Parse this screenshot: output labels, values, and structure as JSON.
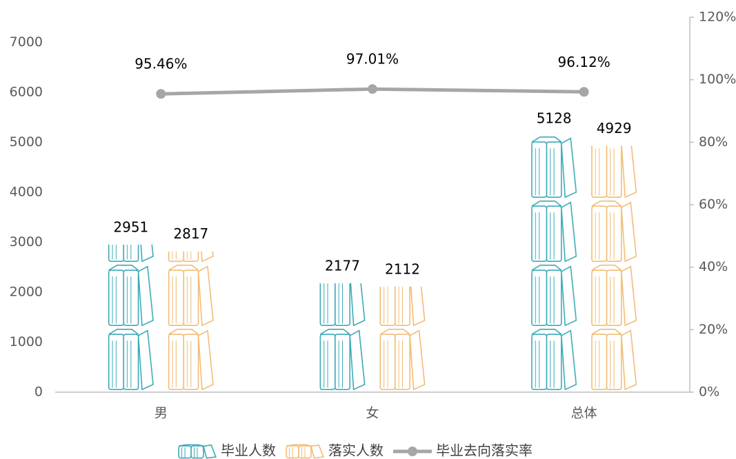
{
  "chart_data": {
    "type": "bar",
    "categories": [
      "男",
      "女",
      "总体"
    ],
    "series": [
      {
        "name": "毕业人数",
        "color": "#3aaab8",
        "values": [
          2951,
          2177,
          5128
        ]
      },
      {
        "name": "落实人数",
        "color": "#f2bc72",
        "values": [
          2817,
          2112,
          4929
        ]
      },
      {
        "name": "毕业去向落实率",
        "type": "line",
        "axis": "y2",
        "color": "#a6a6a6",
        "values": [
          95.46,
          97.01,
          96.12
        ],
        "value_labels": [
          "95.46%",
          "97.01%",
          "96.12%"
        ]
      }
    ],
    "ylim": [
      0,
      7500
    ],
    "yticks": [
      0,
      1000,
      2000,
      3000,
      4000,
      5000,
      6000,
      7000
    ],
    "y2lim": [
      0,
      120
    ],
    "y2ticks": [
      {
        "value": 0,
        "label": "0%"
      },
      {
        "value": 20,
        "label": "20%"
      },
      {
        "value": 40,
        "label": "40%"
      },
      {
        "value": 60,
        "label": "60%"
      },
      {
        "value": 80,
        "label": "80%"
      },
      {
        "value": 100,
        "label": "100%"
      },
      {
        "value": 120,
        "label": "120%"
      }
    ],
    "legend": "bottom"
  }
}
